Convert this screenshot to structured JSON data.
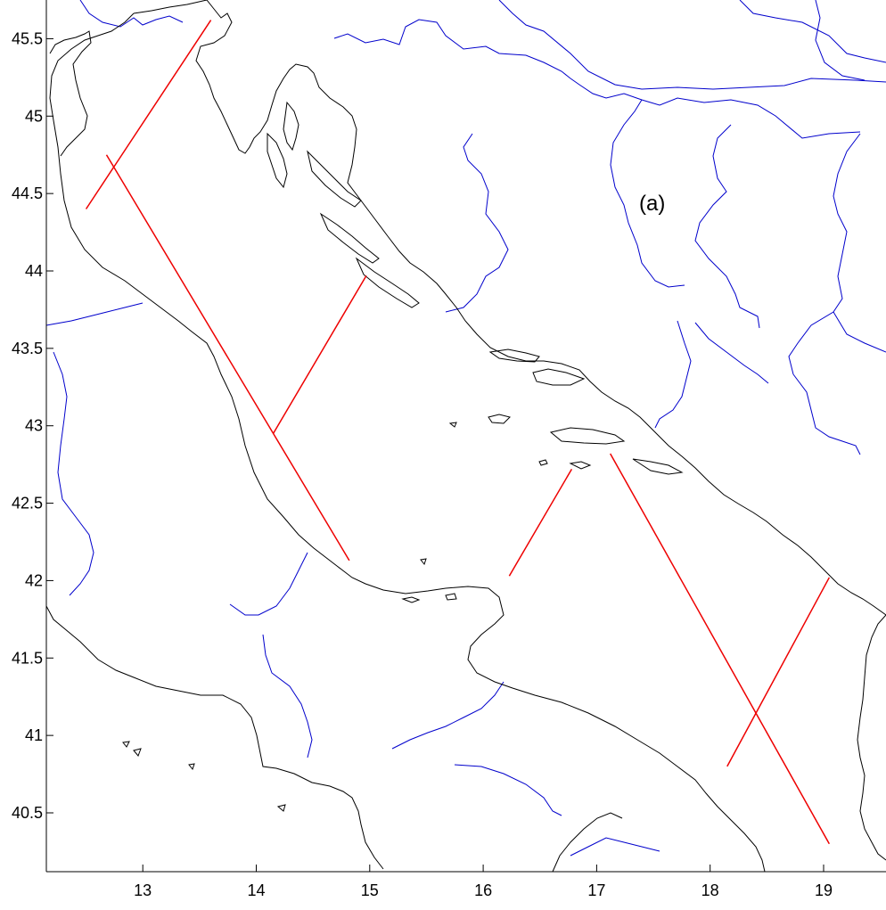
{
  "figure": {
    "panel_label": "(a)",
    "colors": {
      "coastline": "#000000",
      "rivers": "#0000cc",
      "tracks": "#ee0000",
      "axis": "#000000",
      "background": "#ffffff"
    },
    "x_ticks": [
      "13",
      "14",
      "15",
      "16",
      "17",
      "18",
      "19"
    ],
    "y_ticks": [
      "40.5",
      "41",
      "41.5",
      "42",
      "42.5",
      "43",
      "43.5",
      "44",
      "44.5",
      "45",
      "45.5"
    ]
  },
  "chart_data": {
    "type": "map",
    "xlim": [
      12.15,
      19.55
    ],
    "ylim": [
      40.12,
      45.75
    ],
    "tracks": [
      {
        "lon": [
          12.5,
          13.6
        ],
        "lat": [
          44.4,
          45.62
        ]
      },
      {
        "lon": [
          12.68,
          14.82
        ],
        "lat": [
          44.75,
          42.13
        ]
      },
      {
        "lon": [
          14.15,
          14.97
        ],
        "lat": [
          42.95,
          43.97
        ]
      },
      {
        "lon": [
          16.23,
          16.78
        ],
        "lat": [
          42.03,
          42.72
        ]
      },
      {
        "lon": [
          17.12,
          19.05
        ],
        "lat": [
          42.82,
          40.3
        ]
      },
      {
        "lon": [
          18.15,
          19.05
        ],
        "lat": [
          40.8,
          42.02
        ]
      }
    ]
  }
}
